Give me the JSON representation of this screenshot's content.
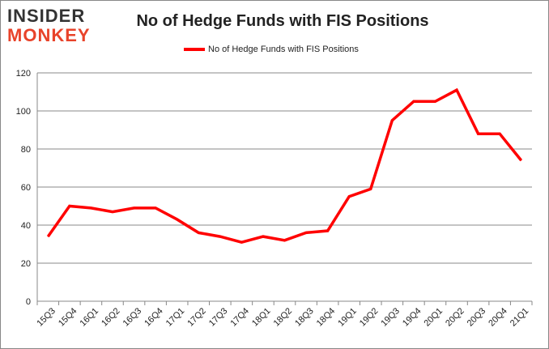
{
  "logo": {
    "line1": "INSIDER",
    "line2": "MONKEY"
  },
  "chart_data": {
    "type": "line",
    "title": "No of Hedge Funds with FIS Positions",
    "xlabel": "",
    "ylabel": "",
    "categories": [
      "15Q3",
      "15Q4",
      "16Q1",
      "16Q2",
      "16Q3",
      "16Q4",
      "17Q1",
      "17Q2",
      "17Q3",
      "17Q4",
      "18Q1",
      "18Q2",
      "18Q3",
      "18Q4",
      "19Q1",
      "19Q2",
      "19Q3",
      "19Q4",
      "20Q1",
      "20Q2",
      "20Q3",
      "20Q4",
      "21Q1"
    ],
    "series": [
      {
        "name": "No of Hedge Funds with FIS Positions",
        "color": "#ff0000",
        "values": [
          34,
          50,
          49,
          47,
          49,
          49,
          43,
          36,
          34,
          31,
          34,
          32,
          36,
          37,
          55,
          59,
          95,
          105,
          105,
          111,
          88,
          88,
          74
        ]
      }
    ],
    "ylim": [
      0,
      120
    ],
    "yticks": [
      0,
      20,
      40,
      60,
      80,
      100,
      120
    ],
    "grid": true,
    "legend": "top-center"
  }
}
